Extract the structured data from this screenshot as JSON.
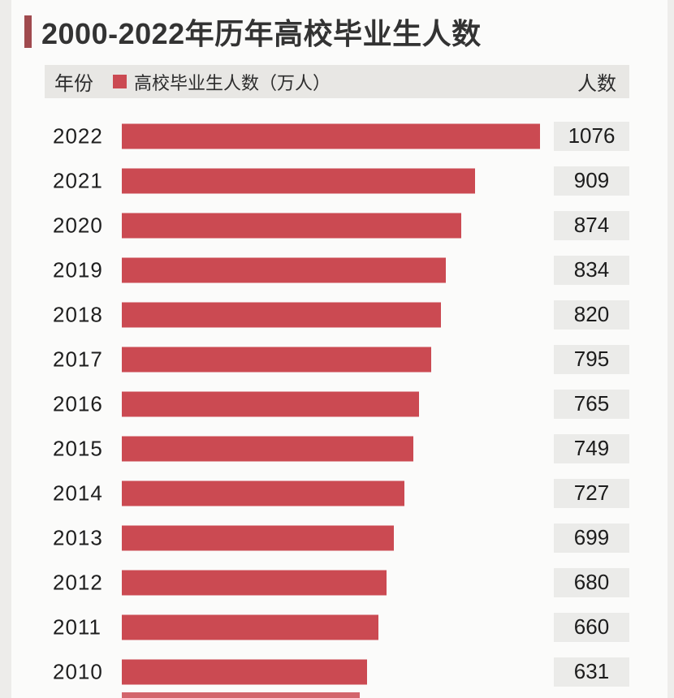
{
  "title": {
    "text": "2000-2022年历年高校毕业生人数"
  },
  "header": {
    "year_col": "年份",
    "legend_label": "高校毕业生人数（万人）",
    "value_col": "人数"
  },
  "chart_data": {
    "type": "bar",
    "orientation": "horizontal",
    "title": "2000-2022年历年高校毕业生人数",
    "series_name": "高校毕业生人数（万人）",
    "unit": "万人",
    "categories": [
      "2022",
      "2021",
      "2020",
      "2019",
      "2018",
      "2017",
      "2016",
      "2015",
      "2014",
      "2013",
      "2012",
      "2011",
      "2010"
    ],
    "values": [
      1076,
      909,
      874,
      834,
      820,
      795,
      765,
      749,
      727,
      699,
      680,
      660,
      631
    ],
    "xlim": [
      0,
      1076
    ],
    "value_labels_shown": true,
    "legend_position": "top",
    "grid": false,
    "partial_next_bar_visible": true
  },
  "colors": {
    "bar": "#cb4a52",
    "title_accent": "#a04a4e",
    "header_bg": "#e8e7e4",
    "value_box_bg": "#ebebe9",
    "page_bg": "#fbfbfa",
    "edge_bg": "#edecea"
  }
}
